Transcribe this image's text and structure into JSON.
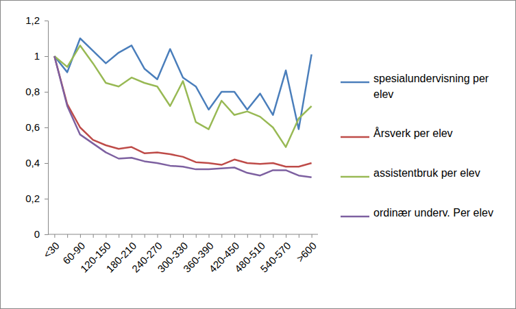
{
  "chart_data": {
    "type": "line",
    "categories": [
      "<30",
      null,
      "60-90",
      null,
      "120-150",
      null,
      "180-210",
      null,
      "240-270",
      null,
      "300-330",
      null,
      "360-390",
      null,
      "420-450",
      null,
      "480-510",
      null,
      "540-570",
      null,
      ">600"
    ],
    "series": [
      {
        "name": "spesialundervisning per elev",
        "color": "#4a7ebb",
        "values": [
          1.0,
          0.91,
          1.1,
          1.03,
          0.96,
          1.02,
          1.06,
          0.93,
          0.87,
          1.04,
          0.88,
          0.83,
          0.7,
          0.8,
          0.8,
          0.7,
          0.79,
          0.67,
          0.92,
          0.59,
          1.01
        ]
      },
      {
        "name": "Årsverk per elev",
        "color": "#be4b48",
        "values": [
          1.0,
          0.73,
          0.6,
          0.53,
          0.5,
          0.48,
          0.49,
          0.455,
          0.46,
          0.45,
          0.435,
          0.405,
          0.4,
          0.39,
          0.42,
          0.4,
          0.395,
          0.4,
          0.38,
          0.38,
          0.4
        ]
      },
      {
        "name": "assistentbruk per elev",
        "color": "#98b954",
        "values": [
          1.0,
          0.94,
          1.06,
          0.96,
          0.85,
          0.83,
          0.88,
          0.85,
          0.83,
          0.72,
          0.86,
          0.63,
          0.59,
          0.75,
          0.67,
          0.69,
          0.66,
          0.6,
          0.49,
          0.65,
          0.72
        ]
      },
      {
        "name": "ordinær underv. Per elev",
        "color": "#7d60a0",
        "values": [
          1.0,
          0.72,
          0.56,
          0.51,
          0.46,
          0.425,
          0.43,
          0.41,
          0.4,
          0.385,
          0.38,
          0.365,
          0.365,
          0.37,
          0.375,
          0.345,
          0.33,
          0.36,
          0.36,
          0.33,
          0.32
        ]
      }
    ],
    "ylim": [
      0,
      1.2
    ],
    "yticks": [
      0,
      {
        "value": 0.2,
        "label": "0,2"
      },
      {
        "value": 0.4,
        "label": "0,4"
      },
      {
        "value": 0.6,
        "label": "0,6"
      },
      {
        "value": 0.8,
        "label": "0,8"
      },
      1,
      {
        "value": 1.2,
        "label": "1,2"
      }
    ],
    "grid": false,
    "legend": "right"
  }
}
